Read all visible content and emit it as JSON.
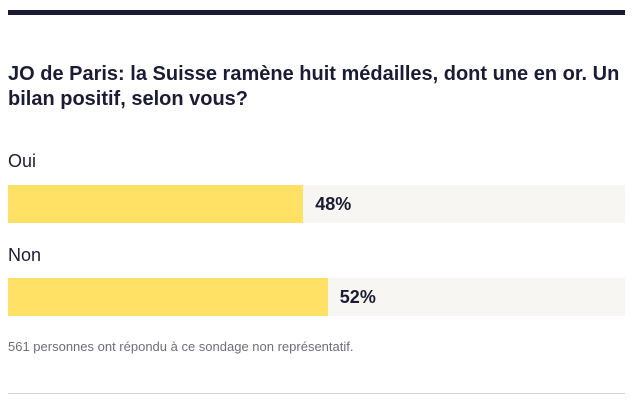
{
  "poll": {
    "question": "JO de Paris: la Suisse ramène huit médailles, dont une en or. Un bilan positif, selon vous?",
    "options": [
      {
        "label": "Oui",
        "percent_text": "48%",
        "percent": 48
      },
      {
        "label": "Non",
        "percent_text": "52%",
        "percent": 52
      }
    ],
    "footnote": "561 personnes ont répondu à ce sondage non représentatif.",
    "colors": {
      "bar_fill": "#ffe165",
      "bar_track": "#f7f6f2",
      "text": "#1b1c33"
    }
  }
}
